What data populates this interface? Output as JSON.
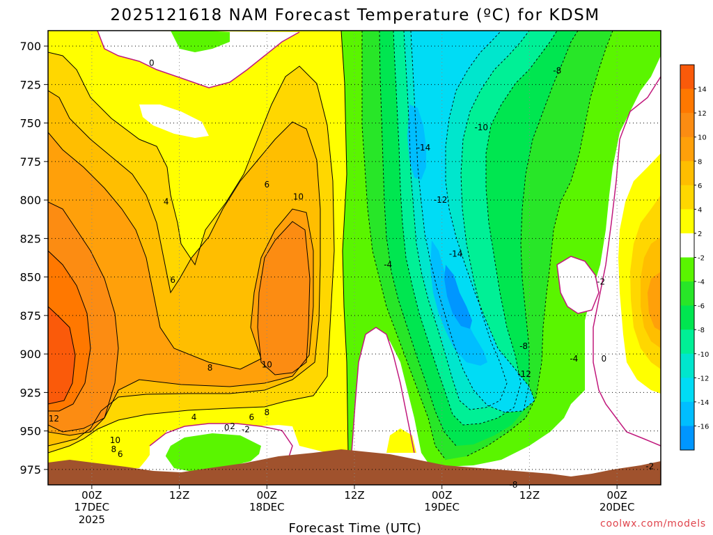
{
  "chart_data": {
    "type": "heatmap",
    "title": "2025121618 NAM Forecast Temperature (ºC) for KDSM",
    "xlabel": "Forecast Time (UTC)",
    "ylabel": "",
    "y_axis": {
      "ticks": [
        "700",
        "725",
        "750",
        "775",
        "800",
        "825",
        "850",
        "875",
        "900",
        "925",
        "950",
        "975"
      ],
      "range": [
        690,
        985
      ],
      "inverted": true
    },
    "x_axis": {
      "ticks": [
        {
          "hour": 6,
          "label": "00Z",
          "sub1": "17DEC",
          "sub2": "2025"
        },
        {
          "hour": 18,
          "label": "12Z",
          "sub1": "",
          "sub2": ""
        },
        {
          "hour": 30,
          "label": "00Z",
          "sub1": "18DEC",
          "sub2": ""
        },
        {
          "hour": 42,
          "label": "12Z",
          "sub1": "",
          "sub2": ""
        },
        {
          "hour": 54,
          "label": "00Z",
          "sub1": "19DEC",
          "sub2": ""
        },
        {
          "hour": 66,
          "label": "12Z",
          "sub1": "",
          "sub2": ""
        },
        {
          "hour": 78,
          "label": "00Z",
          "sub1": "20DEC",
          "sub2": ""
        }
      ],
      "range": [
        0,
        84
      ]
    },
    "colorbar": {
      "labels": [
        "14",
        "12",
        "10",
        "8",
        "6",
        "4",
        "2",
        "-2",
        "-4",
        "-6",
        "-8",
        "-10",
        "-12",
        "-14",
        "-16"
      ],
      "colors": [
        "#fa5a0a",
        "#ff7800",
        "#fc8c12",
        "#ffa00a",
        "#ffbe00",
        "#ffd700",
        "#ffff00",
        "#ffffff",
        "#5af500",
        "#28e628",
        "#00e650",
        "#00f096",
        "#00e6cd",
        "#00dcf5",
        "#00beff",
        "#0096ff"
      ]
    },
    "contour_labels": [
      {
        "t": "0",
        "p": 711,
        "h": 14.2
      },
      {
        "t": "4",
        "p": 801,
        "h": 16.2
      },
      {
        "t": "6",
        "p": 852,
        "h": 17.1
      },
      {
        "t": "6",
        "p": 790,
        "h": 30.0
      },
      {
        "t": "10",
        "p": 798,
        "h": 34.3
      },
      {
        "t": "8",
        "p": 909,
        "h": 22.2
      },
      {
        "t": "10",
        "p": 907,
        "h": 30.0
      },
      {
        "t": "8",
        "p": 938,
        "h": 30.0
      },
      {
        "t": "6",
        "p": 941,
        "h": 27.9
      },
      {
        "t": "4",
        "p": 941,
        "h": 20.0
      },
      {
        "t": "0",
        "p": 948,
        "h": 24.5
      },
      {
        "t": "2",
        "p": 947,
        "h": 25.3
      },
      {
        "t": "-2",
        "p": 949,
        "h": 27.1
      },
      {
        "t": "12",
        "p": 942,
        "h": 0.8
      },
      {
        "t": "10",
        "p": 956,
        "h": 9.2
      },
      {
        "t": "8",
        "p": 962,
        "h": 9.0
      },
      {
        "t": "6",
        "p": 965,
        "h": 9.9
      },
      {
        "t": "-4",
        "p": 842,
        "h": 46.6
      },
      {
        "t": "-14",
        "p": 766,
        "h": 51.5
      },
      {
        "t": "-10",
        "p": 753,
        "h": 59.4
      },
      {
        "t": "-8",
        "p": 716,
        "h": 69.8
      },
      {
        "t": "-12",
        "p": 800,
        "h": 53.8
      },
      {
        "t": "-14",
        "p": 835,
        "h": 55.9
      },
      {
        "t": "-8",
        "p": 895,
        "h": 65.2
      },
      {
        "t": "-12",
        "p": 913,
        "h": 65.3
      },
      {
        "t": "-4",
        "p": 903,
        "h": 72.1
      },
      {
        "t": "0",
        "p": 903,
        "h": 76.2
      },
      {
        "t": "-2",
        "p": 853,
        "h": 75.8
      },
      {
        "t": "-2",
        "p": 973,
        "h": 82.5
      },
      {
        "t": "-8",
        "p": 985,
        "h": 63.8
      }
    ],
    "legend": "right"
  },
  "credit": "coolwx.com/models"
}
